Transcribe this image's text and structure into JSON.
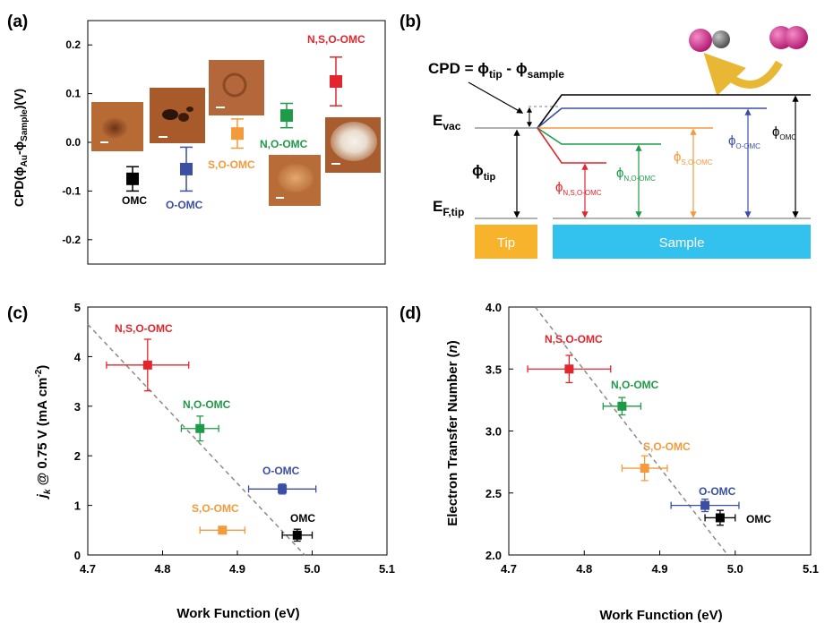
{
  "colors": {
    "OMC": "#000000",
    "O-OMC": "#3b4ea3",
    "S,O-OMC": "#f39a3c",
    "N,O-OMC": "#1f9a48",
    "N,S,O-OMC": "#e1262d",
    "fit": "#8a8a8a",
    "tip": "#f7b32b",
    "sample": "#33c1ee",
    "evac": "#999999",
    "arrow_arc": "#e8b734",
    "atom_pink": "#cc2a86",
    "atom_grey": "#6d6d6d"
  },
  "panels": {
    "a": {
      "label": "(a)"
    },
    "b": {
      "label": "(b)",
      "cpd_eq_lhs": "CPD = ",
      "cpd_phi": "ϕ",
      "cpd_tip_sub": "tip",
      "cpd_minus": " - ",
      "cpd_sample_sub": "sample",
      "evac": "E",
      "evac_sub": "vac",
      "ef": "E",
      "ef_sub": "F,tip",
      "phi": "ϕ",
      "phi_tip_sub": "tip",
      "phi_omc_sub": "OMC",
      "phi_oomc_sub": "O-OMC",
      "phi_soomc_sub": "S,O-OMC",
      "phi_noomc_sub": "N,O-OMC",
      "phi_nsoomc_sub": "N,S,O-OMC",
      "tip_box": "Tip",
      "sample_box": "Sample"
    },
    "c": {
      "label": "(c)"
    },
    "d": {
      "label": "(d)"
    }
  },
  "chart_data": [
    {
      "panel": "a",
      "type": "scatter",
      "ylabel": "CPD(ϕAu-ϕSample)(V)",
      "ylabel_parts": [
        "CPD(ϕ",
        "Au",
        "-ϕ",
        "Sample",
        ")(V)"
      ],
      "ylim": [
        -0.25,
        0.25
      ],
      "yticks": [
        "-0.2",
        "-0.1",
        "0.0",
        "0.1",
        "0.2"
      ],
      "ytick_values": [
        -0.2,
        -0.1,
        0.0,
        0.1,
        0.2
      ],
      "series": [
        {
          "name": "OMC",
          "color_key": "OMC",
          "y": -0.075,
          "err": 0.025
        },
        {
          "name": "O-OMC",
          "color_key": "O-OMC",
          "y": -0.055,
          "err": 0.045
        },
        {
          "name": "S,O-OMC",
          "color_key": "S,O-OMC",
          "y": 0.018,
          "err": 0.03
        },
        {
          "name": "N,O-OMC",
          "color_key": "N,O-OMC",
          "y": 0.055,
          "err": 0.025
        },
        {
          "name": "N,S,O-OMC",
          "color_key": "N,S,O-OMC",
          "y": 0.125,
          "err": 0.05
        }
      ]
    },
    {
      "panel": "c",
      "type": "scatter",
      "xlabel": "Work Function (eV)",
      "ylabel_parts": [
        "j",
        "k",
        " @ 0.75 V (mA cm",
        "-2",
        ")"
      ],
      "xlim": [
        4.7,
        5.1
      ],
      "ylim": [
        0,
        5
      ],
      "xticks": [
        "4.7",
        "4.8",
        "4.9",
        "5.0",
        "5.1"
      ],
      "xtick_values": [
        4.7,
        4.8,
        4.9,
        5.0,
        5.1
      ],
      "yticks": [
        "0",
        "1",
        "2",
        "3",
        "4",
        "5"
      ],
      "ytick_values": [
        0,
        1,
        2,
        3,
        4,
        5
      ],
      "fit_line": {
        "x": [
          4.7,
          4.99
        ],
        "y": [
          4.65,
          0
        ]
      },
      "series": [
        {
          "name": "N,S,O-OMC",
          "color_key": "N,S,O-OMC",
          "x": 4.78,
          "y": 3.83,
          "xerr": 0.055,
          "yerr": 0.52
        },
        {
          "name": "N,O-OMC",
          "color_key": "N,O-OMC",
          "x": 4.85,
          "y": 2.55,
          "xerr": 0.025,
          "yerr": 0.25
        },
        {
          "name": "O-OMC",
          "color_key": "O-OMC",
          "x": 4.96,
          "y": 1.33,
          "xerr": 0.045,
          "yerr": 0.1
        },
        {
          "name": "S,O-OMC",
          "color_key": "S,O-OMC",
          "x": 4.88,
          "y": 0.5,
          "xerr": 0.03,
          "yerr": 0.07
        },
        {
          "name": "OMC",
          "color_key": "OMC",
          "x": 4.98,
          "y": 0.4,
          "xerr": 0.02,
          "yerr": 0.12
        }
      ]
    },
    {
      "panel": "d",
      "type": "scatter",
      "xlabel": "Work Function (eV)",
      "ylabel_parts": [
        "Electron Transfer Number (",
        "n",
        ")"
      ],
      "xlim": [
        4.7,
        5.1
      ],
      "ylim": [
        2.0,
        4.0
      ],
      "xticks": [
        "4.7",
        "4.8",
        "4.9",
        "5.0",
        "5.1"
      ],
      "xtick_values": [
        4.7,
        4.8,
        4.9,
        5.0,
        5.1
      ],
      "yticks": [
        "2.0",
        "2.5",
        "3.0",
        "3.5",
        "4.0"
      ],
      "ytick_values": [
        2.0,
        2.5,
        3.0,
        3.5,
        4.0
      ],
      "fit_line": {
        "x": [
          4.735,
          4.99
        ],
        "y": [
          4.0,
          2.0
        ]
      },
      "series": [
        {
          "name": "N,S,O-OMC",
          "color_key": "N,S,O-OMC",
          "x": 4.78,
          "y": 3.5,
          "xerr": 0.055,
          "yerr": 0.11
        },
        {
          "name": "N,O-OMC",
          "color_key": "N,O-OMC",
          "x": 4.85,
          "y": 3.2,
          "xerr": 0.025,
          "yerr": 0.07
        },
        {
          "name": "S,O-OMC",
          "color_key": "S,O-OMC",
          "x": 4.88,
          "y": 2.7,
          "xerr": 0.03,
          "yerr": 0.1
        },
        {
          "name": "O-OMC",
          "color_key": "O-OMC",
          "x": 4.96,
          "y": 2.4,
          "xerr": 0.045,
          "yerr": 0.05
        },
        {
          "name": "OMC",
          "color_key": "OMC",
          "x": 4.98,
          "y": 2.3,
          "xerr": 0.02,
          "yerr": 0.06
        }
      ]
    }
  ]
}
